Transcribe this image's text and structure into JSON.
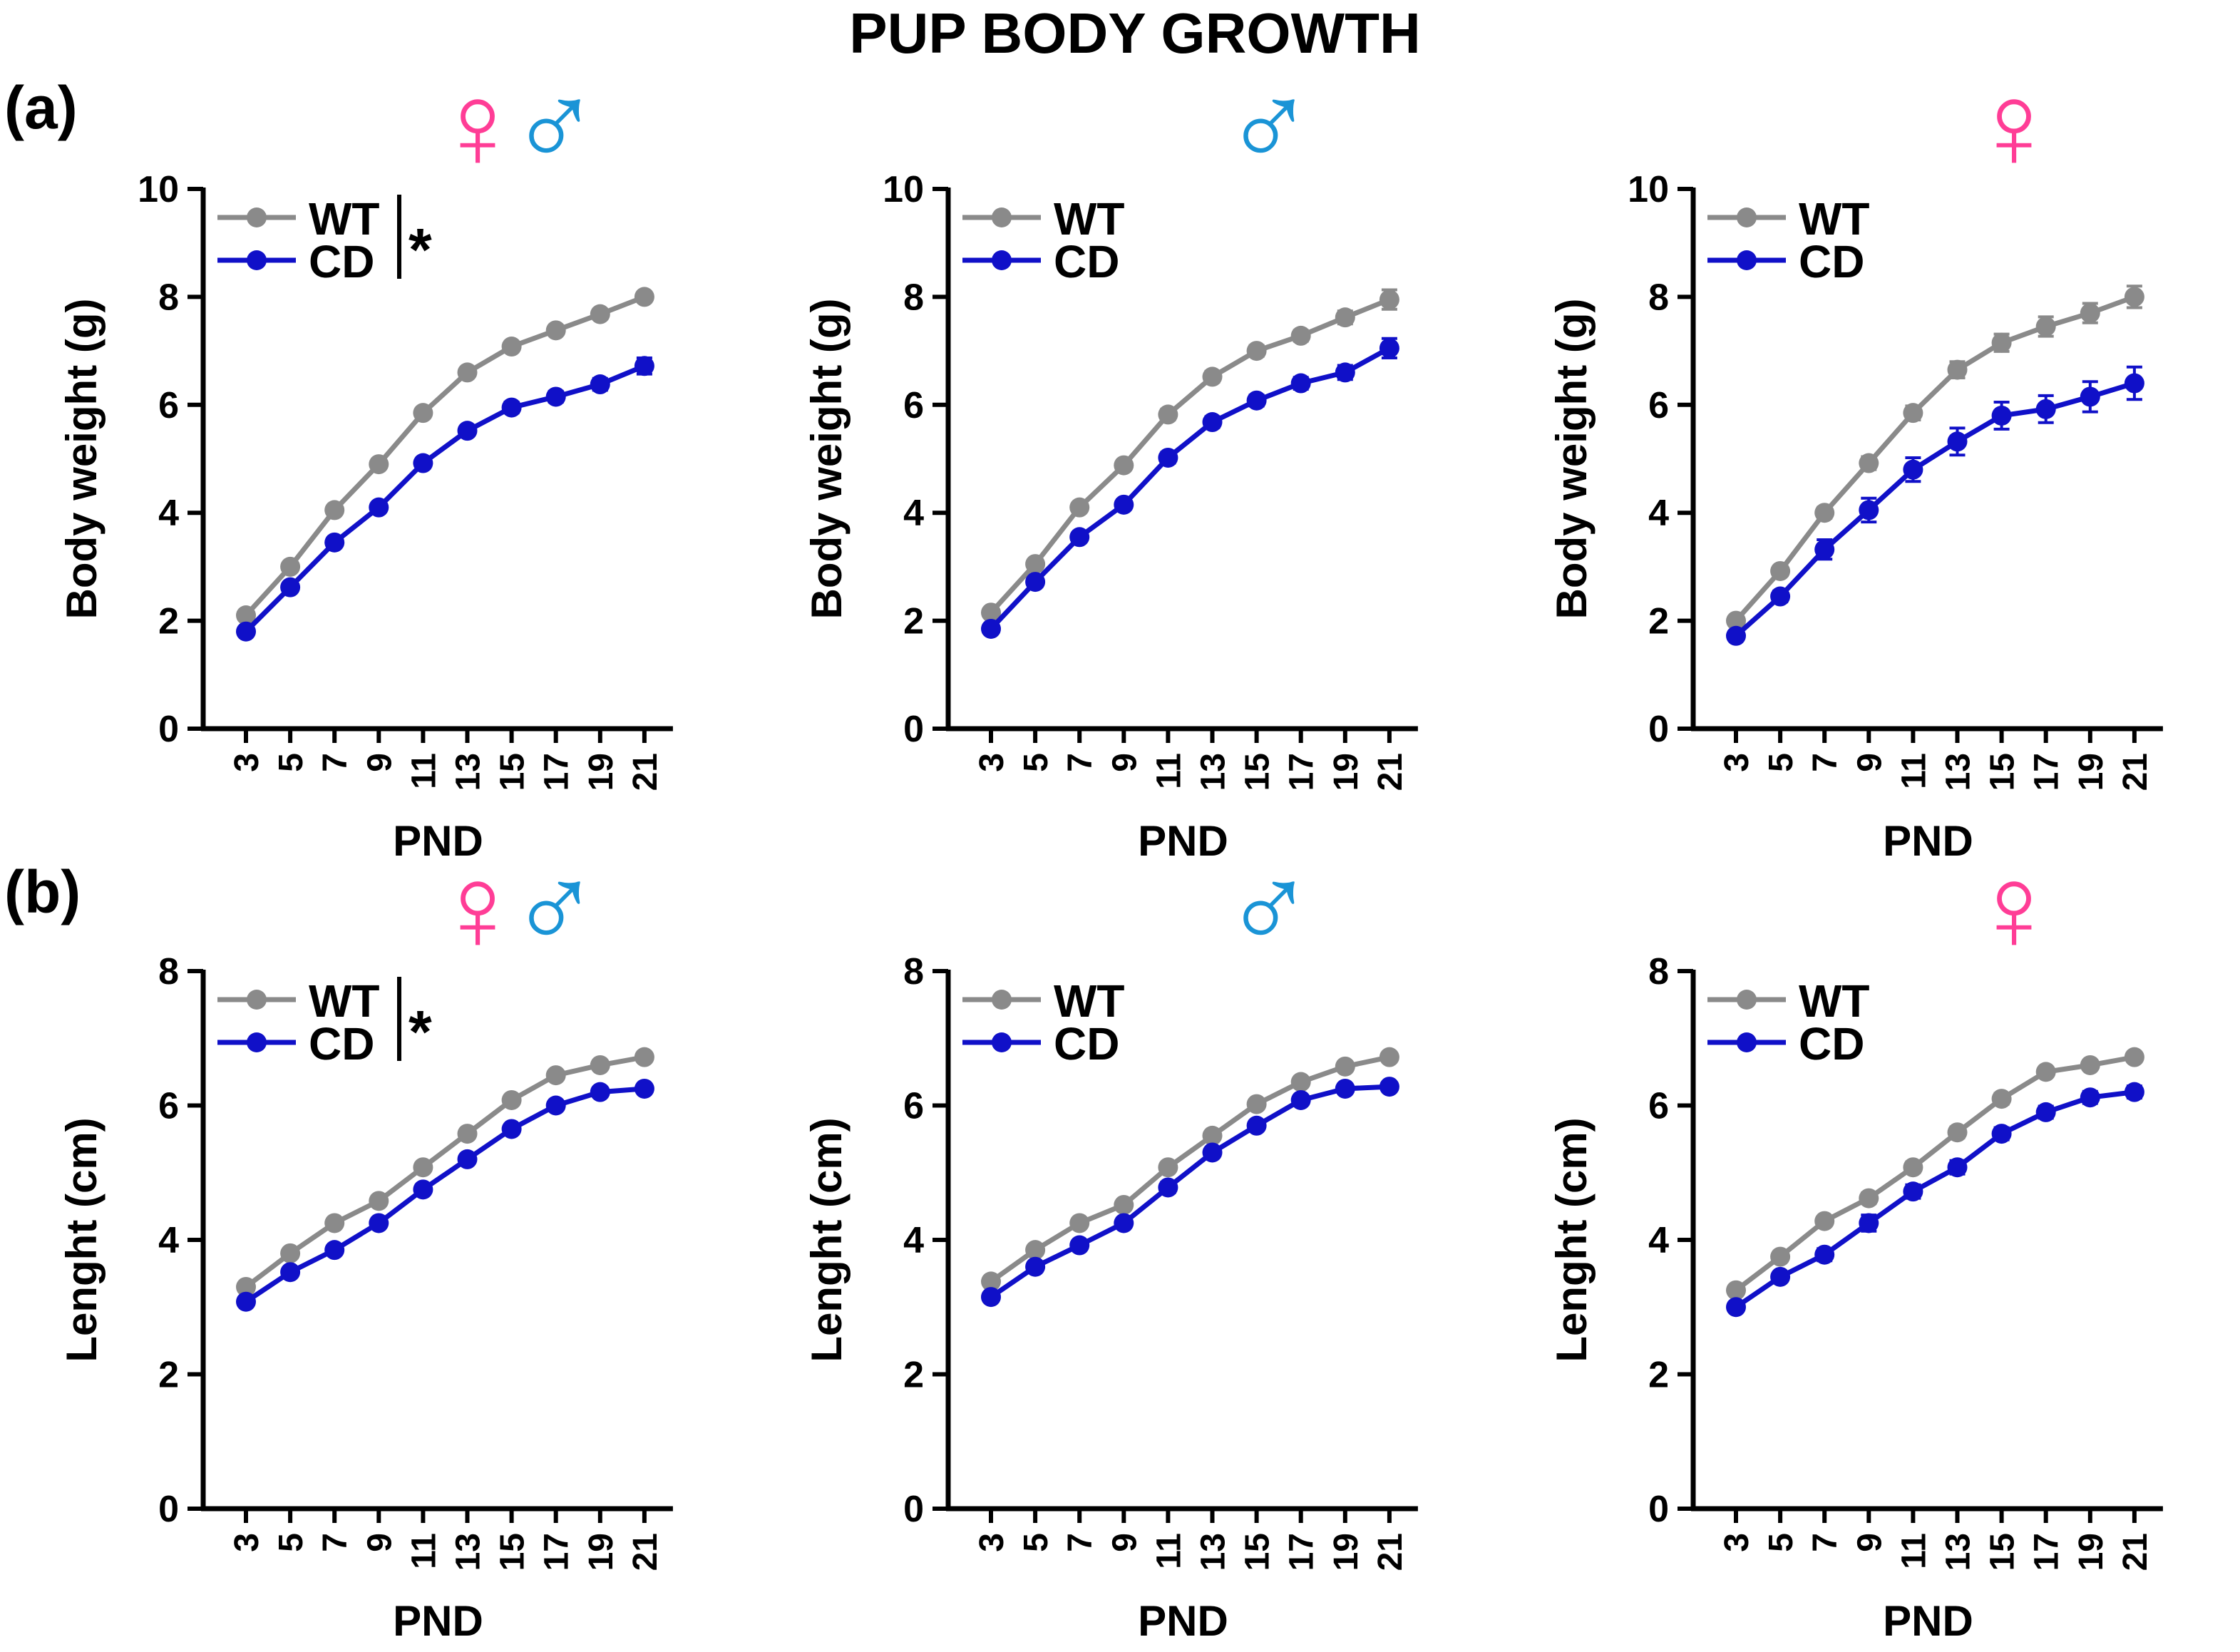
{
  "figure_title": "PUP BODY GROWTH",
  "colors": {
    "wt": "#8a8a8a",
    "cd": "#1010c8",
    "female": "#ff3d96",
    "male": "#1a94d6"
  },
  "rows": [
    {
      "label": "(a)"
    },
    {
      "label": "(b)"
    }
  ],
  "chart_data": [
    {
      "type": "line",
      "row": 0,
      "col": 0,
      "sex_symbols": [
        "♀",
        "♂"
      ],
      "sex_colors": [
        "female",
        "male"
      ],
      "significance": "*",
      "ylabel": "Body weight (g)",
      "xlabel": "PND",
      "ylim": [
        0,
        10
      ],
      "yticks": [
        0,
        2,
        4,
        6,
        8,
        10
      ],
      "categories": [
        "3",
        "5",
        "7",
        "9",
        "11",
        "13",
        "15",
        "17",
        "19",
        "21"
      ],
      "series": [
        {
          "name": "WT",
          "color": "wt",
          "values": [
            2.1,
            3.0,
            4.05,
            4.9,
            5.85,
            6.6,
            7.08,
            7.38,
            7.68,
            8.0
          ],
          "err": [
            0.05,
            0.06,
            0.07,
            0.08,
            0.09,
            0.08,
            0.08,
            0.08,
            0.09,
            0.09
          ]
        },
        {
          "name": "CD",
          "color": "cd",
          "values": [
            1.8,
            2.62,
            3.45,
            4.1,
            4.92,
            5.52,
            5.95,
            6.15,
            6.38,
            6.72
          ],
          "err": [
            0.05,
            0.06,
            0.07,
            0.08,
            0.09,
            0.09,
            0.1,
            0.1,
            0.11,
            0.15
          ]
        }
      ]
    },
    {
      "type": "line",
      "row": 0,
      "col": 1,
      "sex_symbols": [
        "♂"
      ],
      "sex_colors": [
        "male"
      ],
      "significance": "",
      "ylabel": "Body weight (g)",
      "xlabel": "PND",
      "ylim": [
        0,
        10
      ],
      "yticks": [
        0,
        2,
        4,
        6,
        8,
        10
      ],
      "categories": [
        "3",
        "5",
        "7",
        "9",
        "11",
        "13",
        "15",
        "17",
        "19",
        "21"
      ],
      "series": [
        {
          "name": "WT",
          "color": "wt",
          "values": [
            2.15,
            3.05,
            4.1,
            4.88,
            5.82,
            6.52,
            7.0,
            7.28,
            7.62,
            7.95
          ],
          "err": [
            0.06,
            0.07,
            0.08,
            0.09,
            0.1,
            0.1,
            0.1,
            0.1,
            0.12,
            0.18
          ]
        },
        {
          "name": "CD",
          "color": "cd",
          "values": [
            1.85,
            2.72,
            3.55,
            4.15,
            5.02,
            5.68,
            6.08,
            6.4,
            6.6,
            7.05
          ],
          "err": [
            0.06,
            0.07,
            0.08,
            0.09,
            0.1,
            0.1,
            0.1,
            0.11,
            0.13,
            0.18
          ]
        }
      ]
    },
    {
      "type": "line",
      "row": 0,
      "col": 2,
      "sex_symbols": [
        "♀"
      ],
      "sex_colors": [
        "female"
      ],
      "significance": "",
      "ylabel": "Body weight (g)",
      "xlabel": "PND",
      "ylim": [
        0,
        10
      ],
      "yticks": [
        0,
        2,
        4,
        6,
        8,
        10
      ],
      "categories": [
        "3",
        "5",
        "7",
        "9",
        "11",
        "13",
        "15",
        "17",
        "19",
        "21"
      ],
      "series": [
        {
          "name": "WT",
          "color": "wt",
          "values": [
            2.0,
            2.92,
            4.0,
            4.92,
            5.85,
            6.65,
            7.15,
            7.45,
            7.7,
            8.0
          ],
          "err": [
            0.06,
            0.08,
            0.1,
            0.12,
            0.13,
            0.15,
            0.16,
            0.18,
            0.18,
            0.2
          ]
        },
        {
          "name": "CD",
          "color": "cd",
          "values": [
            1.72,
            2.45,
            3.32,
            4.05,
            4.8,
            5.32,
            5.8,
            5.92,
            6.15,
            6.4
          ],
          "err": [
            0.08,
            0.1,
            0.18,
            0.22,
            0.22,
            0.25,
            0.25,
            0.25,
            0.28,
            0.3
          ]
        }
      ]
    },
    {
      "type": "line",
      "row": 1,
      "col": 0,
      "sex_symbols": [
        "♀",
        "♂"
      ],
      "sex_colors": [
        "female",
        "male"
      ],
      "significance": "*",
      "ylabel": "Lenght (cm)",
      "xlabel": "PND",
      "ylim": [
        0,
        8
      ],
      "yticks": [
        0,
        2,
        4,
        6,
        8
      ],
      "categories": [
        "3",
        "5",
        "7",
        "9",
        "11",
        "13",
        "15",
        "17",
        "19",
        "21"
      ],
      "series": [
        {
          "name": "WT",
          "color": "wt",
          "values": [
            3.3,
            3.8,
            4.25,
            4.58,
            5.08,
            5.58,
            6.08,
            6.45,
            6.6,
            6.72
          ],
          "err": [
            0.04,
            0.05,
            0.05,
            0.06,
            0.06,
            0.06,
            0.06,
            0.05,
            0.05,
            0.05
          ]
        },
        {
          "name": "CD",
          "color": "cd",
          "values": [
            3.08,
            3.52,
            3.85,
            4.25,
            4.75,
            5.2,
            5.65,
            6.0,
            6.2,
            6.25
          ],
          "err": [
            0.04,
            0.05,
            0.05,
            0.06,
            0.07,
            0.07,
            0.06,
            0.05,
            0.05,
            0.05
          ]
        }
      ]
    },
    {
      "type": "line",
      "row": 1,
      "col": 1,
      "sex_symbols": [
        "♂"
      ],
      "sex_colors": [
        "male"
      ],
      "significance": "",
      "ylabel": "Lenght (cm)",
      "xlabel": "PND",
      "ylim": [
        0,
        8
      ],
      "yticks": [
        0,
        2,
        4,
        6,
        8
      ],
      "categories": [
        "3",
        "5",
        "7",
        "9",
        "11",
        "13",
        "15",
        "17",
        "19",
        "21"
      ],
      "series": [
        {
          "name": "WT",
          "color": "wt",
          "values": [
            3.38,
            3.85,
            4.25,
            4.52,
            5.08,
            5.55,
            6.02,
            6.35,
            6.58,
            6.72
          ],
          "err": [
            0.05,
            0.05,
            0.06,
            0.06,
            0.07,
            0.07,
            0.06,
            0.06,
            0.05,
            0.05
          ]
        },
        {
          "name": "CD",
          "color": "cd",
          "values": [
            3.15,
            3.6,
            3.92,
            4.25,
            4.78,
            5.3,
            5.7,
            6.08,
            6.25,
            6.28
          ],
          "err": [
            0.05,
            0.05,
            0.06,
            0.07,
            0.08,
            0.07,
            0.07,
            0.06,
            0.06,
            0.06
          ]
        }
      ]
    },
    {
      "type": "line",
      "row": 1,
      "col": 2,
      "sex_symbols": [
        "♀"
      ],
      "sex_colors": [
        "female"
      ],
      "significance": "",
      "ylabel": "Lenght (cm)",
      "xlabel": "PND",
      "ylim": [
        0,
        8
      ],
      "yticks": [
        0,
        2,
        4,
        6,
        8
      ],
      "categories": [
        "3",
        "5",
        "7",
        "9",
        "11",
        "13",
        "15",
        "17",
        "19",
        "21"
      ],
      "series": [
        {
          "name": "WT",
          "color": "wt",
          "values": [
            3.25,
            3.75,
            4.28,
            4.62,
            5.08,
            5.6,
            6.1,
            6.5,
            6.6,
            6.72
          ],
          "err": [
            0.05,
            0.06,
            0.07,
            0.08,
            0.08,
            0.08,
            0.08,
            0.07,
            0.07,
            0.06
          ]
        },
        {
          "name": "CD",
          "color": "cd",
          "values": [
            3.0,
            3.45,
            3.78,
            4.25,
            4.72,
            5.08,
            5.58,
            5.9,
            6.12,
            6.2
          ],
          "err": [
            0.06,
            0.07,
            0.09,
            0.12,
            0.1,
            0.1,
            0.09,
            0.09,
            0.09,
            0.09
          ]
        }
      ]
    }
  ]
}
